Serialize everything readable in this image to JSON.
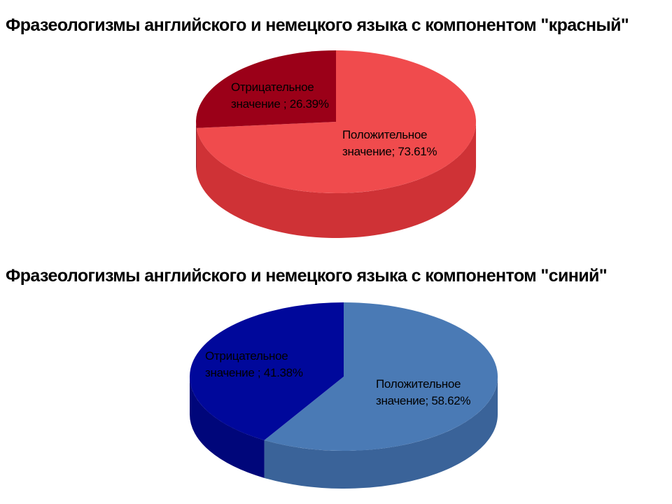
{
  "chart_data": [
    {
      "type": "pie",
      "title": "Фразеологизмы английского и немецкого языка с компонентом \"красный\"",
      "categories": [
        "Положительное значение",
        "Отрицательное значение"
      ],
      "values": [
        73.61,
        26.39
      ],
      "labels": [
        {
          "line1": "Положительное",
          "line2": "значение; 73.61%"
        },
        {
          "line1": "Отрицательное",
          "line2": "значение ; 26.39%"
        }
      ],
      "colors": [
        "#f04b4d",
        "#9b0018"
      ],
      "side_colors": [
        "#cf3236",
        "#7a0010"
      ],
      "style": "3d"
    },
    {
      "type": "pie",
      "title": "Фразеологизмы английского и немецкого языка с компонентом \"синий\"",
      "categories": [
        "Положительное значение",
        "Отрицательное значение"
      ],
      "values": [
        58.62,
        41.38
      ],
      "labels": [
        {
          "line1": "Положительное",
          "line2": "значение; 58.62%"
        },
        {
          "line1": "Отрицательное",
          "line2": "значение ; 41.38%"
        }
      ],
      "colors": [
        "#4a7ab5",
        "#00089b"
      ],
      "side_colors": [
        "#3a6399",
        "#00067a"
      ],
      "style": "3d"
    }
  ]
}
